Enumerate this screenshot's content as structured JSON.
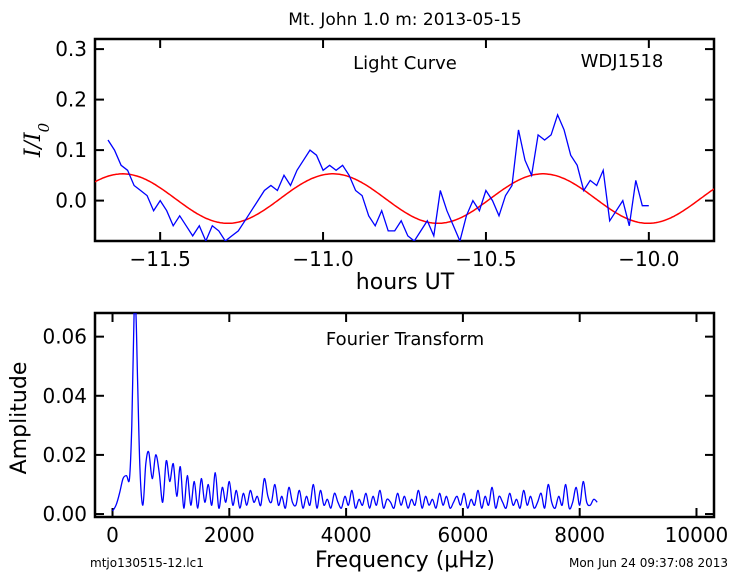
{
  "figure_title": "Mt. John 1.0 m:  2013-05-15",
  "footer": {
    "filename": "mtjo130515-12.lc1",
    "timestamp": "Mon Jun 24 09:37:08 2013"
  },
  "chart_data": [
    {
      "type": "line",
      "panel": "light-curve",
      "annotations": [
        "Light Curve",
        "WDJ1518"
      ],
      "xlabel": "hours UT",
      "ylabel": "I/I0",
      "xlim": [
        -11.7,
        -9.8
      ],
      "ylim": [
        -0.08,
        0.32
      ],
      "xticks": [
        -11.5,
        -11.0,
        -10.5,
        -10.0
      ],
      "xtick_labels": [
        "−11.5",
        "−11.0",
        "−10.5",
        "−10.0"
      ],
      "yticks": [
        0.0,
        0.1,
        0.2,
        0.3
      ],
      "ytick_labels": [
        "0.0",
        "0.1",
        "0.2",
        "0.3"
      ],
      "colors": {
        "observed": "#0000ff",
        "fit": "#ff0000"
      },
      "series": [
        {
          "key": "observed",
          "x": [
            -11.66,
            -11.64,
            -11.62,
            -11.6,
            -11.58,
            -11.56,
            -11.54,
            -11.52,
            -11.5,
            -11.48,
            -11.46,
            -11.44,
            -11.42,
            -11.4,
            -11.38,
            -11.36,
            -11.34,
            -11.32,
            -11.3,
            -11.28,
            -11.26,
            -11.24,
            -11.22,
            -11.2,
            -11.18,
            -11.16,
            -11.14,
            -11.12,
            -11.1,
            -11.08,
            -11.06,
            -11.04,
            -11.02,
            -11.0,
            -10.98,
            -10.96,
            -10.94,
            -10.92,
            -10.9,
            -10.88,
            -10.86,
            -10.84,
            -10.82,
            -10.8,
            -10.78,
            -10.76,
            -10.74,
            -10.72,
            -10.7,
            -10.68,
            -10.66,
            -10.64,
            -10.62,
            -10.6,
            -10.58,
            -10.56,
            -10.54,
            -10.52,
            -10.5,
            -10.48,
            -10.46,
            -10.44,
            -10.42,
            -10.4,
            -10.38,
            -10.36,
            -10.34,
            -10.32,
            -10.3,
            -10.28,
            -10.26,
            -10.24,
            -10.22,
            -10.2,
            -10.18,
            -10.16,
            -10.14,
            -10.12,
            -10.1,
            -10.08,
            -10.06,
            -10.04,
            -10.02
          ],
          "y": [
            0.12,
            0.1,
            0.07,
            0.06,
            0.03,
            0.02,
            0.01,
            -0.02,
            0.0,
            -0.02,
            -0.05,
            -0.03,
            -0.05,
            -0.07,
            -0.05,
            -0.08,
            -0.05,
            -0.06,
            -0.08,
            -0.07,
            -0.06,
            -0.04,
            -0.02,
            0.0,
            0.02,
            0.03,
            0.02,
            0.05,
            0.03,
            0.06,
            0.08,
            0.1,
            0.09,
            0.06,
            0.07,
            0.06,
            0.07,
            0.05,
            0.02,
            0.01,
            -0.03,
            -0.05,
            -0.02,
            -0.06,
            -0.06,
            -0.04,
            -0.07,
            -0.08,
            -0.06,
            -0.04,
            -0.07,
            0.02,
            -0.02,
            -0.05,
            -0.08,
            -0.03,
            0.0,
            -0.02,
            0.02,
            0.0,
            -0.03,
            0.01,
            0.03,
            0.14,
            0.08,
            0.05,
            0.13,
            0.12,
            0.13,
            0.17,
            0.14,
            0.09,
            0.07,
            0.02,
            0.04,
            0.03,
            0.06,
            -0.04,
            -0.02,
            0.0,
            -0.05,
            0.04,
            -0.01
          ],
          "x_end": -10.0,
          "y_end": -0.01
        },
        {
          "key": "fit",
          "model": "sinusoid",
          "amplitude": 0.049,
          "offset": 0.004,
          "period_hours": 0.645,
          "peak_time": -10.97,
          "x_range": [
            -11.7,
            -9.8
          ]
        }
      ]
    },
    {
      "type": "line",
      "panel": "fourier-transform",
      "annotations": [
        "Fourier Transform"
      ],
      "xlabel": "Frequency (μHz)",
      "ylabel": "Amplitude",
      "xlim": [
        -300,
        10300
      ],
      "ylim": [
        -0.001,
        0.068
      ],
      "xticks": [
        0,
        2000,
        4000,
        6000,
        8000,
        10000
      ],
      "xtick_labels": [
        "0",
        "2000",
        "4000",
        "6000",
        "8000",
        "10000"
      ],
      "yticks": [
        0.0,
        0.02,
        0.04,
        0.06
      ],
      "ytick_labels": [
        "0.00",
        "0.02",
        "0.04",
        "0.06"
      ],
      "colors": {
        "spectrum": "#0000ff"
      },
      "series": [
        {
          "key": "spectrum",
          "x": [
            0,
            60,
            120,
            180,
            240,
            290,
            330,
            370,
            400,
            430,
            470,
            520,
            570,
            620,
            680,
            740,
            800,
            860,
            920,
            980,
            1040,
            1100,
            1160,
            1220,
            1280,
            1340,
            1400,
            1460,
            1520,
            1580,
            1640,
            1700,
            1760,
            1820,
            1880,
            1940,
            2000,
            2060,
            2120,
            2180,
            2240,
            2300,
            2360,
            2420,
            2480,
            2540,
            2600,
            2660,
            2720,
            2780,
            2840,
            2900,
            2960,
            3020,
            3080,
            3140,
            3200,
            3260,
            3320,
            3380,
            3440,
            3500,
            3560,
            3620,
            3680,
            3740,
            3800,
            3860,
            3920,
            3980,
            4040,
            4100,
            4160,
            4220,
            4280,
            4340,
            4400,
            4460,
            4520,
            4580,
            4640,
            4700,
            4760,
            4820,
            4880,
            4940,
            5000,
            5060,
            5120,
            5180,
            5240,
            5300,
            5360,
            5420,
            5480,
            5540,
            5600,
            5660,
            5720,
            5780,
            5840,
            5900,
            5960,
            6020,
            6080,
            6140,
            6200,
            6260,
            6320,
            6380,
            6440,
            6500,
            6560,
            6620,
            6680,
            6740,
            6800,
            6860,
            6920,
            6980,
            7040,
            7100,
            7160,
            7220,
            7280,
            7340,
            7400,
            7460,
            7520,
            7580,
            7640,
            7700,
            7760,
            7820,
            7880,
            7940,
            8000,
            8060,
            8120,
            8180,
            8240,
            8300
          ],
          "y": [
            0.001,
            0.003,
            0.007,
            0.012,
            0.013,
            0.012,
            0.03,
            0.068,
            0.068,
            0.045,
            0.015,
            0.003,
            0.017,
            0.021,
            0.012,
            0.02,
            0.014,
            0.004,
            0.018,
            0.011,
            0.017,
            0.006,
            0.016,
            0.002,
            0.013,
            0.003,
            0.011,
            0.002,
            0.012,
            0.004,
            0.01,
            0.003,
            0.014,
            0.002,
            0.009,
            0.004,
            0.011,
            0.003,
            0.008,
            0.002,
            0.007,
            0.003,
            0.008,
            0.004,
            0.006,
            0.003,
            0.012,
            0.006,
            0.004,
            0.01,
            0.003,
            0.006,
            0.002,
            0.009,
            0.004,
            0.003,
            0.008,
            0.002,
            0.006,
            0.003,
            0.01,
            0.002,
            0.008,
            0.003,
            0.005,
            0.002,
            0.007,
            0.004,
            0.002,
            0.006,
            0.003,
            0.008,
            0.002,
            0.005,
            0.003,
            0.007,
            0.002,
            0.006,
            0.003,
            0.008,
            0.002,
            0.005,
            0.004,
            0.002,
            0.007,
            0.003,
            0.006,
            0.002,
            0.005,
            0.003,
            0.008,
            0.002,
            0.006,
            0.003,
            0.005,
            0.002,
            0.007,
            0.003,
            0.006,
            0.002,
            0.004,
            0.006,
            0.003,
            0.007,
            0.002,
            0.005,
            0.003,
            0.008,
            0.002,
            0.006,
            0.003,
            0.009,
            0.002,
            0.006,
            0.004,
            0.002,
            0.007,
            0.003,
            0.005,
            0.002,
            0.008,
            0.003,
            0.006,
            0.002,
            0.004,
            0.007,
            0.002,
            0.01,
            0.004,
            0.002,
            0.006,
            0.003,
            0.01,
            0.002,
            0.004,
            0.009,
            0.003,
            0.011,
            0.004,
            0.003,
            0.005,
            0.004
          ]
        }
      ]
    }
  ]
}
